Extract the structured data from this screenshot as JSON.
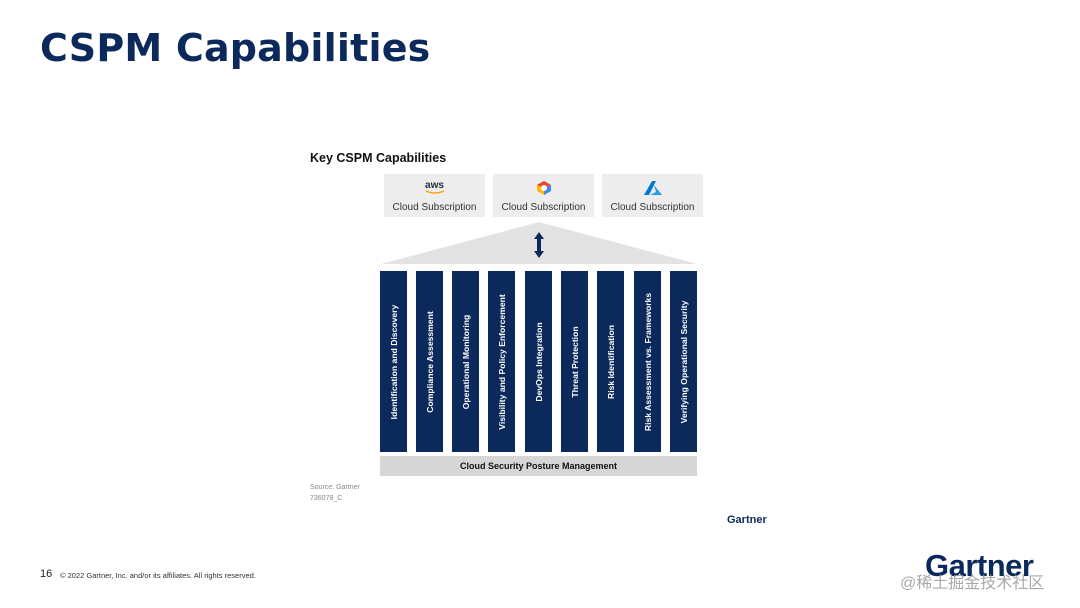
{
  "slide": {
    "title": "CSPM Capabilities",
    "page_number": "16",
    "copyright": "© 2022 Gartner, Inc. and/or its affiliates. All rights reserved.",
    "logo_text": "Gartner",
    "watermark": "@稀土掘金技术社区"
  },
  "figure": {
    "title": "Key CSPM Capabilities",
    "subscriptions": [
      {
        "provider_icon": "aws-logo",
        "logo_text": "aws",
        "label": "Cloud Subscription"
      },
      {
        "provider_icon": "google-cloud-icon",
        "label": "Cloud Subscription"
      },
      {
        "provider_icon": "azure-icon",
        "label": "Cloud Subscription"
      }
    ],
    "roof_icon": "double-arrow-icon",
    "pillars": [
      "Identification and Discovery",
      "Compliance Assessment",
      "Operational Monitoring",
      "Visibility and Policy Enforcement",
      "DevOps Integration",
      "Threat Protection",
      "Risk Identification",
      "Risk Assessment vs. Frameworks",
      "Verifying Operational Security"
    ],
    "base_label": "Cloud Security Posture Management",
    "source": "Source: Gartner",
    "figure_id": "736078_C",
    "logo_text": "Gartner"
  },
  "colors": {
    "navy": "#0b2a5b",
    "panel_gray": "#ededed",
    "base_gray": "#d6d6d6",
    "roof_gray": "#e3e3e3",
    "aws_orange": "#ff9900",
    "azure_blue": "#0078d4"
  }
}
